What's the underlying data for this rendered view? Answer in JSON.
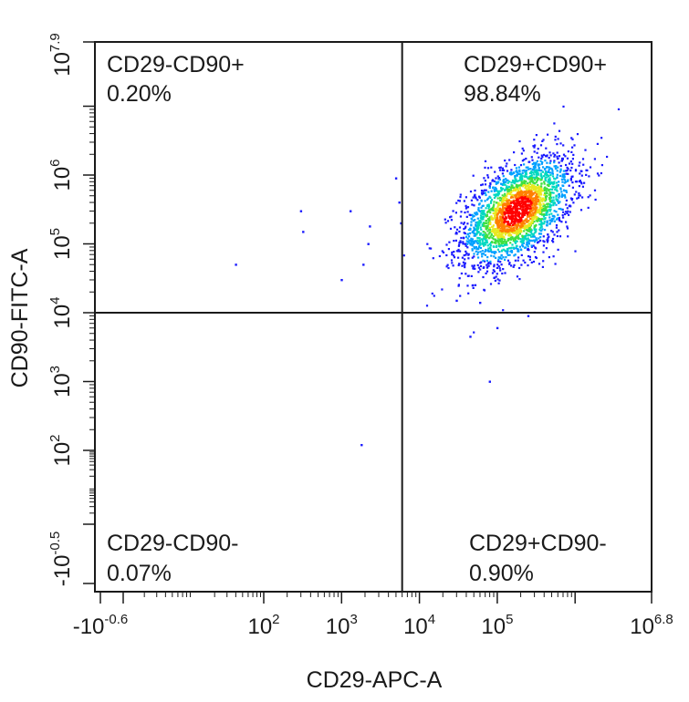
{
  "chart_data": {
    "type": "scatter",
    "title": "",
    "xlabel": "CD29-APC-A",
    "ylabel": "CD90-FITC-A",
    "x_scale": "biexponential",
    "y_scale": "biexponential",
    "xlim": [
      "-10^-0.6",
      "10^6.8"
    ],
    "ylim": [
      "-10^-0.5",
      "10^7.9"
    ],
    "x_ticks": [
      {
        "base": "-10",
        "exp": "-0.6"
      },
      {
        "base": "10",
        "exp": "2"
      },
      {
        "base": "10",
        "exp": "3"
      },
      {
        "base": "10",
        "exp": "4"
      },
      {
        "base": "10",
        "exp": "5"
      },
      {
        "base": "10",
        "exp": "6.8"
      }
    ],
    "y_ticks": [
      {
        "base": "-10",
        "exp": "-0.5"
      },
      {
        "base": "10",
        "exp": "2"
      },
      {
        "base": "10",
        "exp": "3"
      },
      {
        "base": "10",
        "exp": "4"
      },
      {
        "base": "10",
        "exp": "5"
      },
      {
        "base": "10",
        "exp": "6"
      },
      {
        "base": "10",
        "exp": "7.9"
      }
    ],
    "gates": {
      "x": 6000,
      "y": 10000
    },
    "quadrants": [
      {
        "name": "CD29-CD90+",
        "percent": "0.20%"
      },
      {
        "name": "CD29+CD90+",
        "percent": "98.84%"
      },
      {
        "name": "CD29-CD90-",
        "percent": "0.07%"
      },
      {
        "name": "CD29+CD90-",
        "percent": "0.90%"
      }
    ],
    "main_population": {
      "center_x": 180000,
      "center_y": 300000,
      "count": 2600,
      "density_colormap": [
        "#1a1aff",
        "#00a0ff",
        "#00d8c0",
        "#40e040",
        "#e8e820",
        "#ff8000",
        "#ff0000"
      ]
    },
    "outlier_points": [
      {
        "x": 40,
        "y": 50000
      },
      {
        "x": 300,
        "y": 300000
      },
      {
        "x": 320,
        "y": 150000
      },
      {
        "x": 1000,
        "y": 30000
      },
      {
        "x": 1300,
        "y": 300000
      },
      {
        "x": 1900,
        "y": 50000
      },
      {
        "x": 2200,
        "y": 100000
      },
      {
        "x": 2300,
        "y": 180000
      },
      {
        "x": 5000,
        "y": 900000
      },
      {
        "x": 5500,
        "y": 400000
      },
      {
        "x": 5800,
        "y": 200000
      },
      {
        "x": 1800,
        "y": 120
      },
      {
        "x": 80000,
        "y": 1000
      },
      {
        "x": 45000,
        "y": 4500
      },
      {
        "x": 100000,
        "y": 6000
      },
      {
        "x": 30000,
        "y": 15000
      },
      {
        "x": 60000,
        "y": 14000
      },
      {
        "x": 250000,
        "y": 9000
      }
    ]
  }
}
